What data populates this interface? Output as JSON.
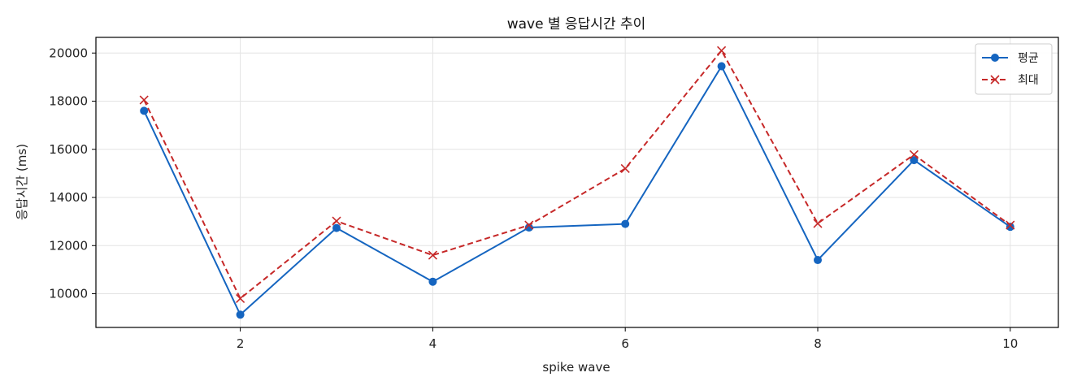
{
  "chart_data": {
    "type": "line",
    "title": "wave 별 응답시간 추이",
    "xlabel": "spike wave",
    "ylabel": "응답시간 (ms)",
    "xlim": [
      0.5,
      10.5
    ],
    "ylim": [
      8600,
      20650
    ],
    "xticks": [
      2,
      4,
      6,
      8,
      10
    ],
    "yticks": [
      10000,
      12000,
      14000,
      16000,
      18000,
      20000
    ],
    "grid": true,
    "legend_position": "top-right",
    "x": [
      1,
      2,
      3,
      4,
      5,
      6,
      7,
      8,
      9,
      10
    ],
    "series": [
      {
        "name": "평균",
        "color": "#1565c0",
        "line_style": "solid",
        "marker": "circle",
        "values": [
          17600,
          9130,
          12730,
          10500,
          12750,
          12900,
          19450,
          11400,
          15550,
          12780
        ]
      },
      {
        "name": "최대",
        "color": "#c62828",
        "line_style": "dashed",
        "marker": "x",
        "values": [
          18050,
          9800,
          13020,
          11600,
          12850,
          15200,
          20100,
          12920,
          15780,
          12850
        ]
      }
    ]
  }
}
